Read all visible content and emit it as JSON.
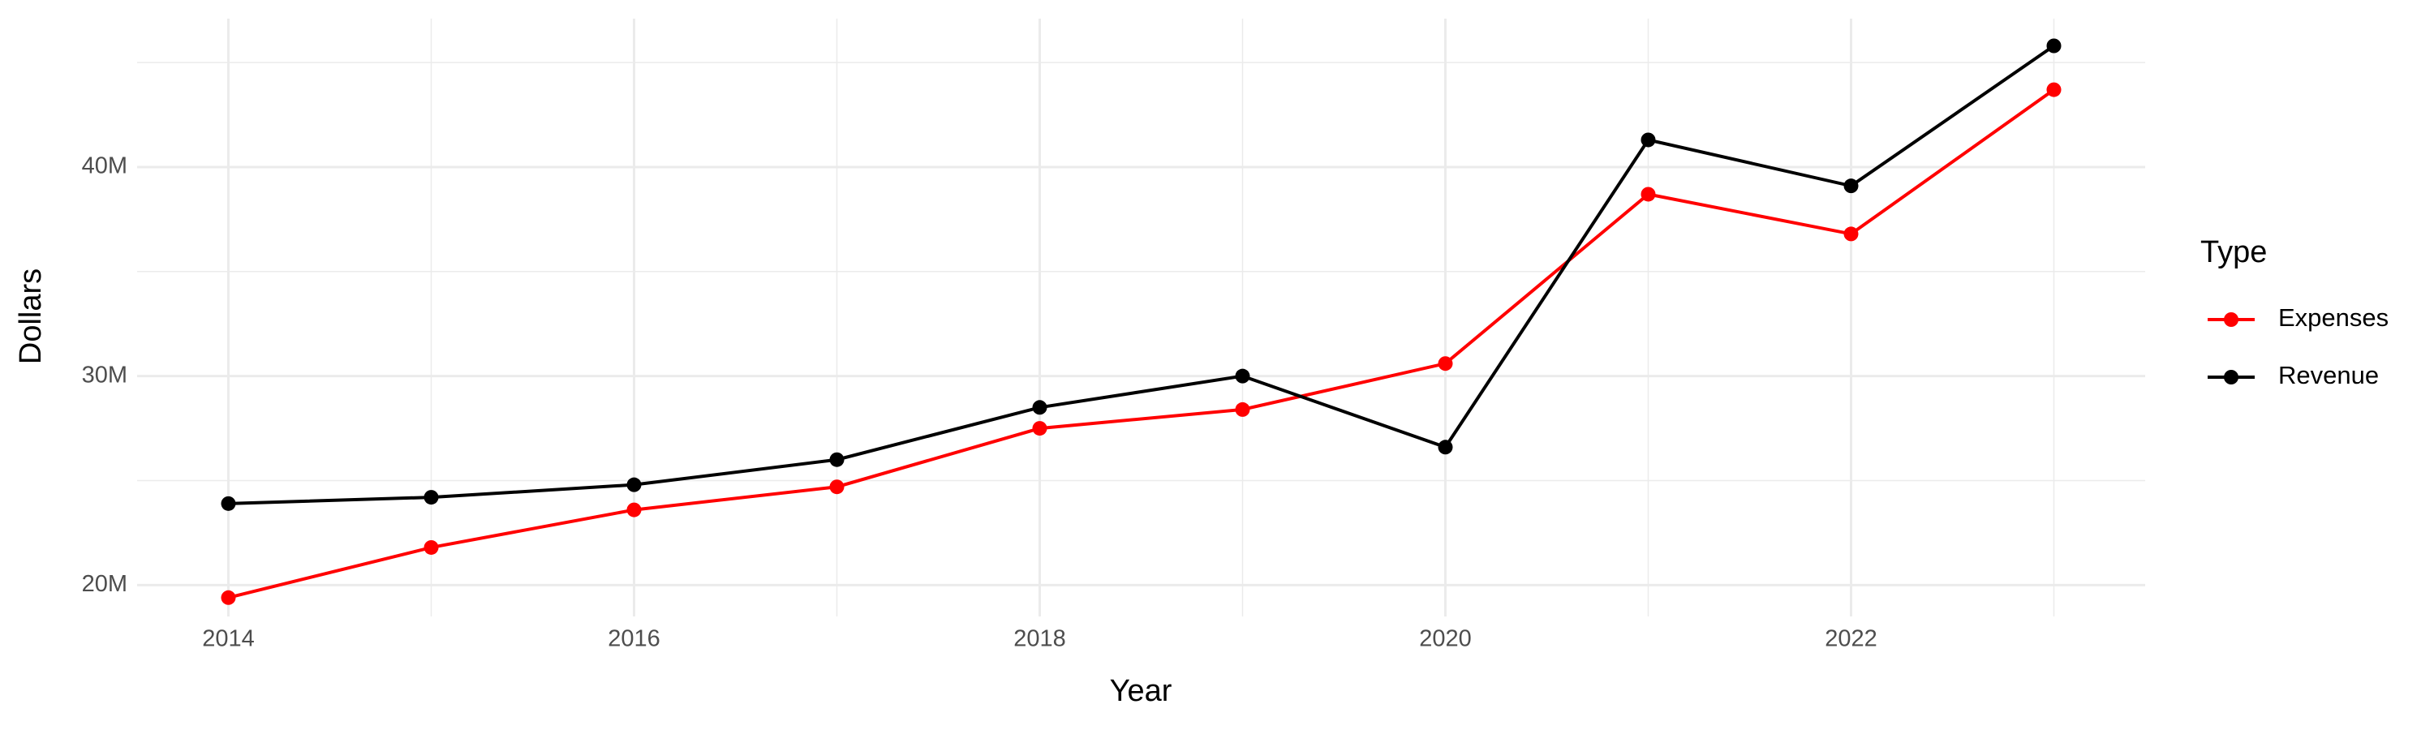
{
  "chart_data": {
    "type": "line",
    "x_label": "Year",
    "y_label": "Dollars",
    "legend_title": "Type",
    "x": [
      2014,
      2015,
      2016,
      2017,
      2018,
      2019,
      2020,
      2021,
      2022,
      2023
    ],
    "series": [
      {
        "name": "Expenses",
        "color": "#ff0000",
        "values": [
          19400000,
          21800000,
          23600000,
          24700000,
          27500000,
          28400000,
          30600000,
          38700000,
          36800000,
          43700000
        ]
      },
      {
        "name": "Revenue",
        "color": "#000000",
        "values": [
          23900000,
          24200000,
          24800000,
          26000000,
          28500000,
          30000000,
          26600000,
          41300000,
          39100000,
          45800000
        ]
      }
    ],
    "xlim": [
      2013.55,
      2023.45
    ],
    "xticks": [
      2014,
      2016,
      2018,
      2020,
      2022
    ],
    "ylim": [
      18500000,
      47100000
    ],
    "yticks": [
      {
        "value": 20000000,
        "label": "20M"
      },
      {
        "value": 30000000,
        "label": "30M"
      },
      {
        "value": 40000000,
        "label": "40M"
      }
    ],
    "grid": true,
    "legend": "right"
  }
}
